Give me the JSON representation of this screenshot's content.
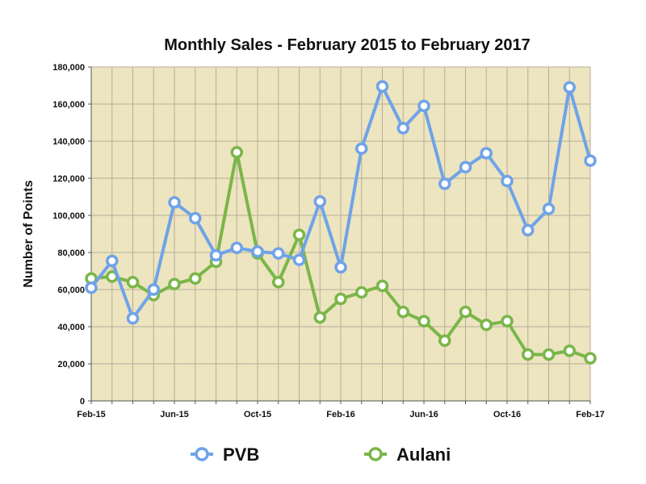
{
  "chart_data": {
    "type": "line",
    "title": "Monthly Sales - February 2015 to February 2017",
    "xlabel": "",
    "ylabel": "Number of Points",
    "ylim": [
      0,
      180000
    ],
    "yticks": [
      "0",
      "20,000",
      "40,000",
      "60,000",
      "80,000",
      "100,000",
      "120,000",
      "140,000",
      "160,000",
      "180,000"
    ],
    "xticks": [
      "Feb-15",
      "Jun-15",
      "Oct-15",
      "Feb-16",
      "Jun-16",
      "Oct-16",
      "Feb-17"
    ],
    "x": [
      "Feb-15",
      "Mar-15",
      "Apr-15",
      "May-15",
      "Jun-15",
      "Jul-15",
      "Aug-15",
      "Sep-15",
      "Oct-15",
      "Nov-15",
      "Dec-15",
      "Jan-16",
      "Feb-16",
      "Mar-16",
      "Apr-16",
      "May-16",
      "Jun-16",
      "Jul-16",
      "Aug-16",
      "Sep-16",
      "Oct-16",
      "Nov-16",
      "Dec-16",
      "Jan-17",
      "Feb-17"
    ],
    "series": [
      {
        "name": "PVB",
        "color": "#6fa3e8",
        "values": [
          61000,
          75500,
          44500,
          60000,
          107000,
          98500,
          78500,
          82500,
          80500,
          79500,
          76000,
          107500,
          72000,
          136000,
          169500,
          147000,
          159000,
          117000,
          126000,
          133500,
          118500,
          92000,
          103500,
          169000,
          129500
        ]
      },
      {
        "name": "Aulani",
        "color": "#7ab648",
        "values": [
          66000,
          67000,
          64000,
          57000,
          63000,
          66000,
          75000,
          134000,
          79500,
          64000,
          89500,
          45000,
          55000,
          58500,
          62000,
          48000,
          43000,
          32500,
          48000,
          41000,
          43000,
          25000,
          25000,
          27000,
          23000
        ]
      }
    ],
    "grid": true,
    "legend_position": "bottom",
    "plot_background": "#ede4c0"
  }
}
